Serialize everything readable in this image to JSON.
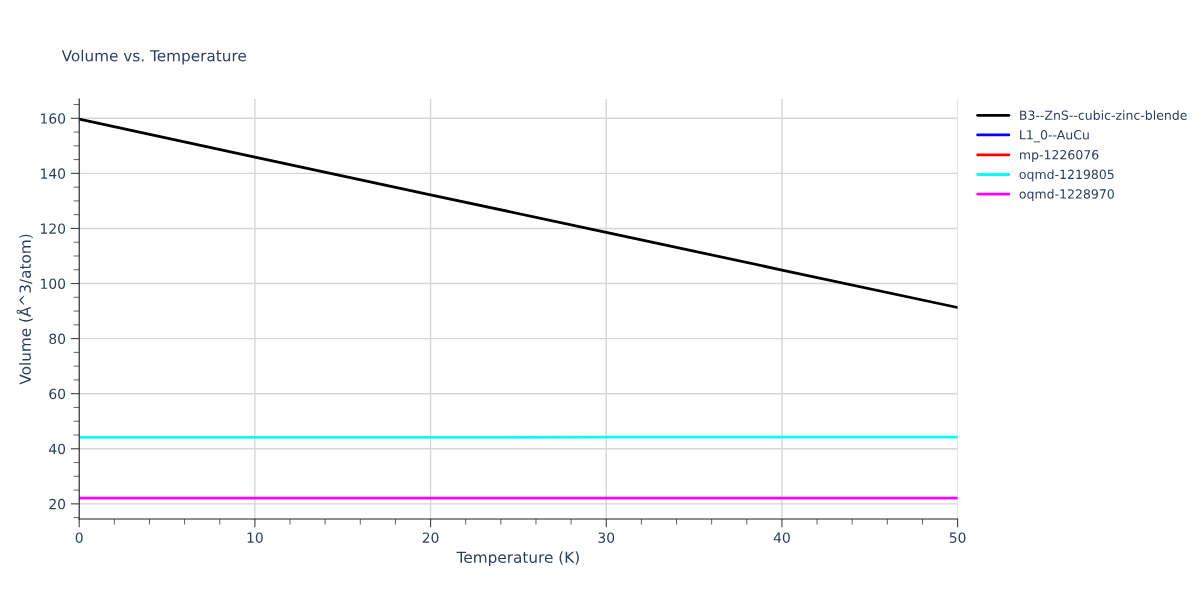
{
  "chart_data": {
    "type": "line",
    "title": "Volume vs. Temperature",
    "xlabel": "Temperature (K)",
    "ylabel": "Volume (Å^3/atom)",
    "x": [
      0,
      10,
      20,
      30,
      40,
      50
    ],
    "series": [
      {
        "name": "B3--ZnS--cubic-zinc-blende",
        "color": "#000000",
        "values": [
          159.7,
          145.9,
          132.2,
          118.6,
          104.9,
          91.3
        ]
      },
      {
        "name": "L1_0--AuCu",
        "color": "#0000ff",
        "values": [
          null,
          null,
          null,
          null,
          null,
          null
        ]
      },
      {
        "name": "mp-1226076",
        "color": "#ff0000",
        "values": [
          null,
          null,
          null,
          null,
          null,
          null
        ]
      },
      {
        "name": "oqmd-1219805",
        "color": "#00ffff",
        "values": [
          44.1,
          44.1,
          44.1,
          44.2,
          44.2,
          44.2
        ]
      },
      {
        "name": "oqmd-1228970",
        "color": "#ff00ff",
        "values": [
          22.1,
          22.1,
          22.1,
          22.1,
          22.1,
          22.1
        ]
      }
    ],
    "xlim": [
      0,
      50
    ],
    "ylim": [
      14.5,
      167
    ],
    "xticks": [
      0,
      {
        "value": 2,
        "label": null
      },
      {
        "value": 4,
        "label": null
      },
      {
        "value": 6,
        "label": null
      },
      {
        "value": 8,
        "label": null
      },
      10,
      {
        "value": 12,
        "label": null
      },
      {
        "value": 14,
        "label": null
      },
      {
        "value": 16,
        "label": null
      },
      {
        "value": 18,
        "label": null
      },
      20,
      {
        "value": 22,
        "label": null
      },
      {
        "value": 24,
        "label": null
      },
      {
        "value": 26,
        "label": null
      },
      {
        "value": 28,
        "label": null
      },
      30,
      {
        "value": 32,
        "label": null
      },
      {
        "value": 34,
        "label": null
      },
      {
        "value": 36,
        "label": null
      },
      {
        "value": 38,
        "label": null
      },
      40,
      {
        "value": 42,
        "label": null
      },
      {
        "value": 44,
        "label": null
      },
      {
        "value": 46,
        "label": null
      },
      {
        "value": 48,
        "label": null
      },
      50
    ],
    "yticks": [
      {
        "value": 15,
        "label": null
      },
      20,
      {
        "value": 25,
        "label": null
      },
      {
        "value": 30,
        "label": null
      },
      {
        "value": 35,
        "label": null
      },
      40,
      {
        "value": 45,
        "label": null
      },
      {
        "value": 50,
        "label": null
      },
      {
        "value": 55,
        "label": null
      },
      60,
      {
        "value": 65,
        "label": null
      },
      {
        "value": 70,
        "label": null
      },
      {
        "value": 75,
        "label": null
      },
      80,
      {
        "value": 85,
        "label": null
      },
      {
        "value": 90,
        "label": null
      },
      {
        "value": 95,
        "label": null
      },
      100,
      {
        "value": 105,
        "label": null
      },
      {
        "value": 110,
        "label": null
      },
      {
        "value": 115,
        "label": null
      },
      120,
      {
        "value": 125,
        "label": null
      },
      {
        "value": 130,
        "label": null
      },
      {
        "value": 135,
        "label": null
      },
      140,
      {
        "value": 145,
        "label": null
      },
      {
        "value": 150,
        "label": null
      },
      {
        "value": 155,
        "label": null
      },
      160,
      {
        "value": 165,
        "label": null
      }
    ],
    "grid": true,
    "legend": "top right",
    "marker": "none",
    "line_style": "solid"
  }
}
